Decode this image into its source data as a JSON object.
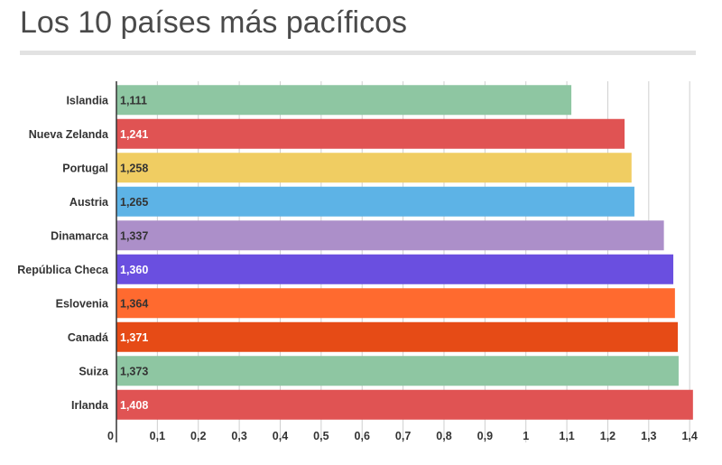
{
  "title": "Los 10 países más pacíficos",
  "chart_data": {
    "type": "bar",
    "orientation": "horizontal",
    "title": "Los 10 países más pacíficos",
    "xlabel": "",
    "ylabel": "",
    "xlim": [
      0,
      1.415
    ],
    "grid": true,
    "legend": "none",
    "categories": [
      "Islandia",
      "Nueva Zelanda",
      "Portugal",
      "Austria",
      "Dinamarca",
      "República Checa",
      "Eslovenia",
      "Canadá",
      "Suiza",
      "Irlanda"
    ],
    "values": [
      1.111,
      1.241,
      1.258,
      1.265,
      1.337,
      1.36,
      1.364,
      1.371,
      1.373,
      1.408
    ],
    "value_labels": [
      "1,111",
      "1,241",
      "1,258",
      "1,265",
      "1,337",
      "1,360",
      "1,364",
      "1,371",
      "1,373",
      "1,408"
    ],
    "colors": [
      "#8ec6a2",
      "#e05353",
      "#f0cd62",
      "#5db3e6",
      "#ac8fc9",
      "#6a4fe0",
      "#ff6a2f",
      "#e64b16",
      "#8ec6a2",
      "#e05353"
    ],
    "value_label_colors": [
      "#333333",
      "#ffffff",
      "#333333",
      "#333333",
      "#333333",
      "#ffffff",
      "#333333",
      "#ffffff",
      "#333333",
      "#ffffff"
    ],
    "x_ticks": [
      0,
      0.1,
      0.2,
      0.3,
      0.4,
      0.5,
      0.6,
      0.7,
      0.8,
      0.9,
      1,
      1.1,
      1.2,
      1.3,
      1.4
    ],
    "x_tick_labels": [
      "0",
      "0,1",
      "0,2",
      "0,3",
      "0,4",
      "0,5",
      "0,6",
      "0,7",
      "0,8",
      "0,9",
      "1",
      "1,1",
      "1,2",
      "1,3",
      "1,4"
    ]
  }
}
